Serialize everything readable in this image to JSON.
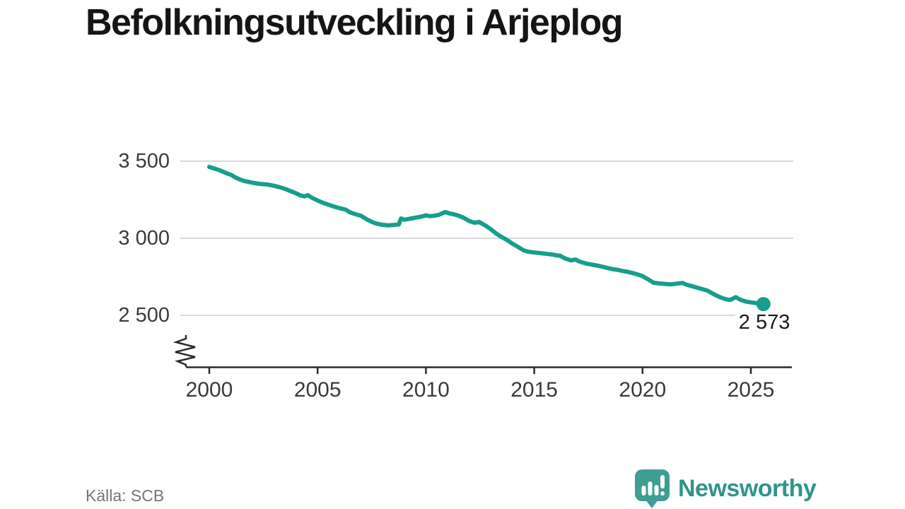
{
  "chart_data": {
    "type": "line",
    "title": "Befolkningsutveckling i Arjeplog",
    "source": "Källa: SCB",
    "grid": "horizontal",
    "legend": "none",
    "axis_break": true,
    "xlim": [
      1999,
      2026.9
    ],
    "ylim": [
      2500,
      3500
    ],
    "x_ticks": [
      {
        "label": "2000",
        "value": 2000
      },
      {
        "label": "2005",
        "value": 2005
      },
      {
        "label": "2010",
        "value": 2010
      },
      {
        "label": "2015",
        "value": 2015
      },
      {
        "label": "2020",
        "value": 2020
      },
      {
        "label": "2025",
        "value": 2025
      }
    ],
    "y_ticks": [
      {
        "label": "3 500",
        "value": 3500
      },
      {
        "label": "3 000",
        "value": 3000
      },
      {
        "label": "2 500",
        "value": 2500
      }
    ],
    "end_label": "2 573",
    "end_value": 2573,
    "line_color": "#169e8d",
    "grid_color": "#d9d9d9",
    "axis_color": "#2b2b2b",
    "series": [
      {
        "name": "Befolkning i Arjeplog",
        "color": "#169e8d",
        "points": [
          [
            2000.0,
            3463
          ],
          [
            2000.17,
            3455
          ],
          [
            2000.33,
            3448
          ],
          [
            2000.5,
            3440
          ],
          [
            2000.67,
            3430
          ],
          [
            2000.83,
            3420
          ],
          [
            2001.0,
            3412
          ],
          [
            2001.2,
            3395
          ],
          [
            2001.4,
            3382
          ],
          [
            2001.6,
            3372
          ],
          [
            2001.8,
            3366
          ],
          [
            2002.0,
            3360
          ],
          [
            2002.2,
            3355
          ],
          [
            2002.4,
            3352
          ],
          [
            2002.6,
            3350
          ],
          [
            2002.8,
            3346
          ],
          [
            2003.0,
            3340
          ],
          [
            2003.25,
            3331
          ],
          [
            2003.5,
            3320
          ],
          [
            2003.75,
            3306
          ],
          [
            2004.0,
            3292
          ],
          [
            2004.2,
            3278
          ],
          [
            2004.4,
            3272
          ],
          [
            2004.55,
            3280
          ],
          [
            2004.75,
            3262
          ],
          [
            2005.0,
            3245
          ],
          [
            2005.25,
            3230
          ],
          [
            2005.5,
            3218
          ],
          [
            2005.75,
            3206
          ],
          [
            2006.0,
            3196
          ],
          [
            2006.3,
            3186
          ],
          [
            2006.5,
            3168
          ],
          [
            2006.75,
            3156
          ],
          [
            2007.0,
            3146
          ],
          [
            2007.3,
            3120
          ],
          [
            2007.6,
            3100
          ],
          [
            2007.8,
            3092
          ],
          [
            2008.0,
            3087
          ],
          [
            2008.25,
            3084
          ],
          [
            2008.5,
            3086
          ],
          [
            2008.75,
            3090
          ],
          [
            2008.85,
            3128
          ],
          [
            2009.0,
            3120
          ],
          [
            2009.25,
            3126
          ],
          [
            2009.5,
            3133
          ],
          [
            2009.75,
            3139
          ],
          [
            2010.0,
            3148
          ],
          [
            2010.2,
            3143
          ],
          [
            2010.4,
            3147
          ],
          [
            2010.6,
            3152
          ],
          [
            2010.9,
            3170
          ],
          [
            2011.1,
            3160
          ],
          [
            2011.3,
            3155
          ],
          [
            2011.5,
            3147
          ],
          [
            2011.75,
            3132
          ],
          [
            2012.0,
            3112
          ],
          [
            2012.25,
            3100
          ],
          [
            2012.45,
            3106
          ],
          [
            2012.75,
            3082
          ],
          [
            2013.0,
            3058
          ],
          [
            2013.25,
            3030
          ],
          [
            2013.5,
            3008
          ],
          [
            2013.75,
            2988
          ],
          [
            2014.0,
            2964
          ],
          [
            2014.25,
            2944
          ],
          [
            2014.5,
            2922
          ],
          [
            2014.75,
            2912
          ],
          [
            2015.0,
            2908
          ],
          [
            2015.3,
            2903
          ],
          [
            2015.6,
            2898
          ],
          [
            2015.85,
            2894
          ],
          [
            2016.0,
            2890
          ],
          [
            2016.2,
            2886
          ],
          [
            2016.4,
            2870
          ],
          [
            2016.7,
            2856
          ],
          [
            2016.9,
            2862
          ],
          [
            2017.1,
            2848
          ],
          [
            2017.4,
            2836
          ],
          [
            2017.7,
            2828
          ],
          [
            2018.0,
            2820
          ],
          [
            2018.3,
            2810
          ],
          [
            2018.6,
            2800
          ],
          [
            2018.85,
            2795
          ],
          [
            2019.0,
            2790
          ],
          [
            2019.3,
            2782
          ],
          [
            2019.6,
            2772
          ],
          [
            2019.85,
            2762
          ],
          [
            2020.0,
            2754
          ],
          [
            2020.25,
            2734
          ],
          [
            2020.5,
            2712
          ],
          [
            2020.75,
            2707
          ],
          [
            2021.0,
            2704
          ],
          [
            2021.3,
            2701
          ],
          [
            2021.6,
            2706
          ],
          [
            2021.85,
            2710
          ],
          [
            2022.0,
            2700
          ],
          [
            2022.3,
            2688
          ],
          [
            2022.6,
            2676
          ],
          [
            2022.85,
            2666
          ],
          [
            2023.0,
            2660
          ],
          [
            2023.3,
            2636
          ],
          [
            2023.6,
            2616
          ],
          [
            2023.85,
            2604
          ],
          [
            2024.05,
            2600
          ],
          [
            2024.3,
            2618
          ],
          [
            2024.5,
            2602
          ],
          [
            2024.75,
            2590
          ],
          [
            2025.0,
            2584
          ],
          [
            2025.3,
            2578
          ],
          [
            2025.58,
            2573
          ]
        ]
      }
    ]
  },
  "branding": {
    "name": "Newsworthy",
    "icon": "bar-chart-speech-bubble-icon",
    "bubble_color": "#3f9e92",
    "text_color": "#2f948a"
  }
}
